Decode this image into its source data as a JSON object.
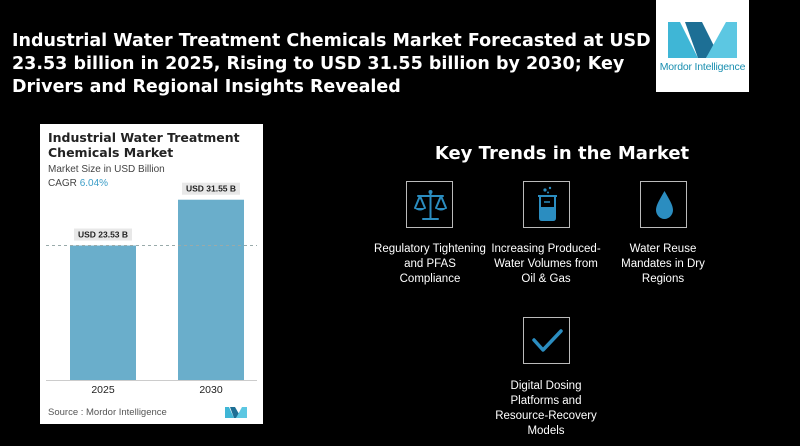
{
  "headline": "Industrial Water Treatment Chemicals Market Forecasted at USD 23.53 billion in 2025, Rising to USD 31.55 billion by 2030; Key Drivers and Regional Insights Revealed",
  "brand": {
    "logo_text": "Mordor Intelligence",
    "color": "#1a8fb0"
  },
  "card": {
    "title": "Industrial Water Treatment Chemicals Market",
    "subtitle": "Market Size in USD Billion",
    "cagr_label": "CAGR",
    "cagr_value": "6.04%",
    "source": "Source :  Mordor Intelligence"
  },
  "chart_data": {
    "type": "bar",
    "categories": [
      "2025",
      "2030"
    ],
    "values": [
      23.53,
      31.55
    ],
    "data_labels": [
      "USD 23.53 B",
      "USD 31.55 B"
    ],
    "ylabel": "Market Size in USD Billion",
    "ylim": [
      0,
      35
    ],
    "bar_color": "#6aaecb",
    "grid": false,
    "reference_line_at": 23.53
  },
  "trends": {
    "title": "Key Trends in the Market",
    "items": [
      {
        "label": "Regulatory Tightening and PFAS Compliance",
        "icon": "scales-icon"
      },
      {
        "label": "Increasing Produced-Water Volumes from Oil & Gas",
        "icon": "beaker-icon"
      },
      {
        "label": "Water Reuse Mandates in Dry Regions",
        "icon": "water-drop-icon"
      },
      {
        "label": "Digital Dosing Platforms and Resource-Recovery Models",
        "icon": "checkmark-icon"
      }
    ]
  }
}
